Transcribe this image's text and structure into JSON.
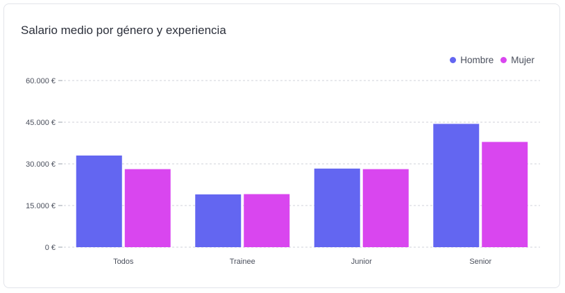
{
  "chart_data": {
    "type": "bar",
    "title": "Salario medio por género y experiencia",
    "categories": [
      "Todos",
      "Trainee",
      "Junior",
      "Senior"
    ],
    "series": [
      {
        "name": "Hombre",
        "color": "#6366f1",
        "values": [
          33000,
          19000,
          28300,
          44400
        ]
      },
      {
        "name": "Mujer",
        "color": "#d946ef",
        "values": [
          28100,
          19100,
          28100,
          37900
        ]
      }
    ],
    "y_ticks": [
      "0 €",
      "15.000 €",
      "30.000 €",
      "45.000 €",
      "60.000 €"
    ],
    "ylim": [
      0,
      60000
    ],
    "legend_position": "top-right",
    "grid": true
  }
}
